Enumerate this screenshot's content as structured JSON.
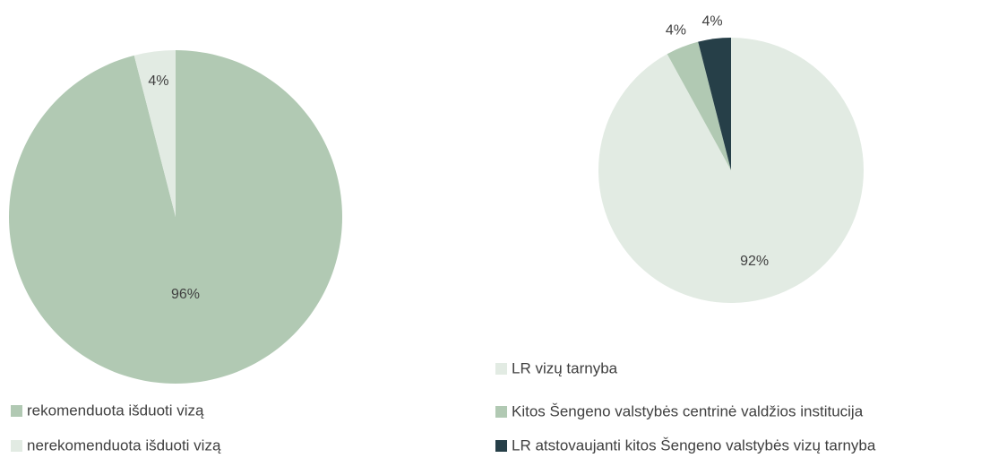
{
  "chart_data": [
    {
      "type": "pie",
      "categories": [
        "rekomenduota išduoti vizą",
        "nerekomenduota išduoti vizą"
      ],
      "values": [
        96,
        4
      ],
      "value_labels": [
        "96%",
        "4%"
      ],
      "colors": [
        "#b1c9b3",
        "#e2ebe3"
      ]
    },
    {
      "type": "pie",
      "categories": [
        "LR vizų tarnyba",
        "Kitos Šengeno valstybės centrinė valdžios institucija",
        "LR atstovaujanti kitos Šengeno valstybės vizų tarnyba"
      ],
      "values": [
        92,
        4,
        4
      ],
      "value_labels": [
        "92%",
        "4%",
        "4%"
      ],
      "colors": [
        "#e2ebe3",
        "#b1c9b3",
        "#263f48"
      ]
    }
  ]
}
